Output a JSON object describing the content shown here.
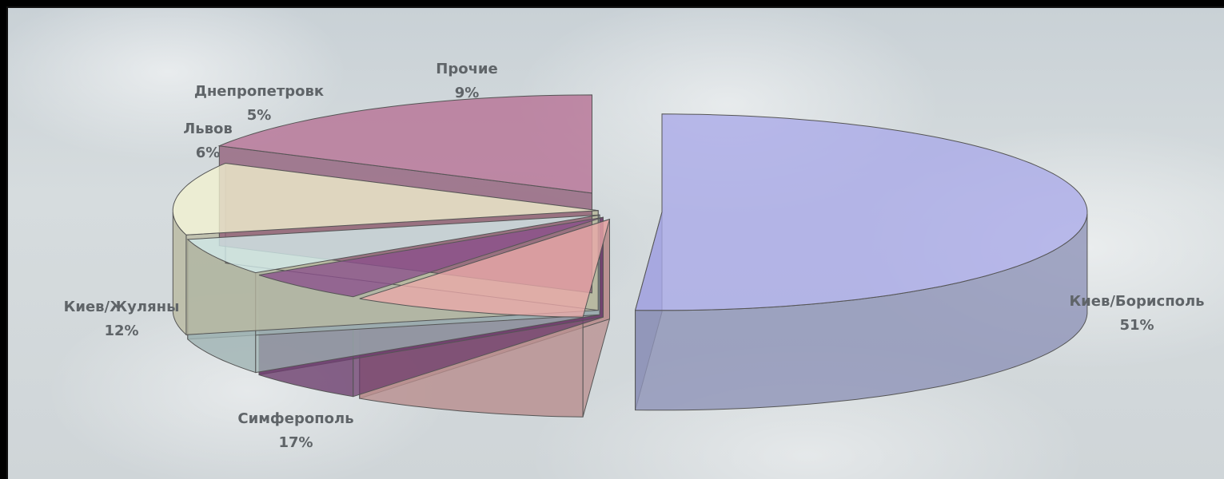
{
  "chart_data": {
    "type": "pie",
    "title": "",
    "slices": [
      {
        "label": "Киев/Борисполь",
        "value": 51,
        "value_label": "51%",
        "color": "#a9a9e8",
        "side": "#8f93b8"
      },
      {
        "label": "Прочие",
        "value": 9,
        "value_label": "9%",
        "color": "#eaa9a9",
        "side": "#b88d8d"
      },
      {
        "label": "Днепропетровк",
        "value": 5,
        "value_label": "5%",
        "color": "#8a4f8c",
        "side": "#6d3e6e"
      },
      {
        "label": "Львов",
        "value": 6,
        "value_label": "6%",
        "color": "#d3ecec",
        "side": "#9fb3b3"
      },
      {
        "label": "Киев/Жуляны",
        "value": 12,
        "value_label": "12%",
        "color": "#f2f2cf",
        "side": "#b9b9a0"
      },
      {
        "label": "Симферополь",
        "value": 17,
        "value_label": "17%",
        "color": "#b66f93",
        "side": "#8f5a75"
      }
    ]
  }
}
